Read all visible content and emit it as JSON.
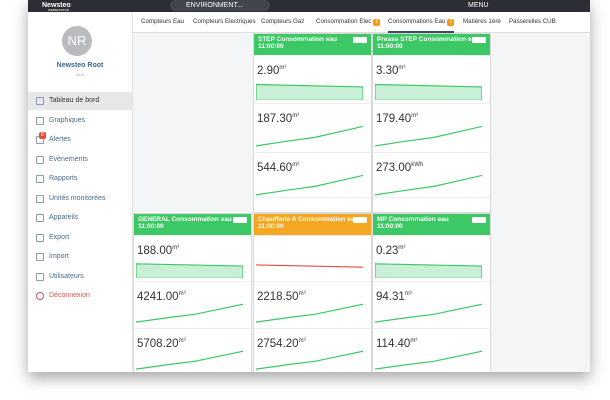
{
  "topbar": {
    "brand": "Newsteo",
    "brand_sub": "WEBMONITOR",
    "search": "ENVIRONMENT...",
    "menu": "MENU"
  },
  "user": {
    "initials": "NR",
    "name": "Newsteo Root",
    "version": "v1.8"
  },
  "sidebar": [
    {
      "label": "Tableau de bord",
      "active": true
    },
    {
      "label": "Graphiques"
    },
    {
      "label": "Alertes",
      "badge": "8"
    },
    {
      "label": "Evènements"
    },
    {
      "label": "Rapports"
    },
    {
      "label": "Unités monitorées"
    },
    {
      "label": "Appareils"
    },
    {
      "label": "Export"
    },
    {
      "label": "Import"
    },
    {
      "label": "Utilisateurs"
    },
    {
      "label": "Déconnexion",
      "danger": true
    }
  ],
  "tabs": [
    {
      "label": "Compteurs Eau"
    },
    {
      "label": "Compteurs Electriques"
    },
    {
      "label": "Compteurs Gaz"
    },
    {
      "label": "Consommation Elec",
      "badge": "1"
    },
    {
      "label": "Consommations Eau",
      "badge": "1",
      "active": true
    },
    {
      "label": "Matières 1ère"
    },
    {
      "label": "Passerelles CUB"
    }
  ],
  "cards": [
    {
      "title": "STEP Consommation eau",
      "time": "11:00:00",
      "status": "ok",
      "rows": [
        {
          "value": "2.90",
          "unit": "m³"
        },
        {
          "value": "187.30",
          "unit": "m³"
        },
        {
          "value": "544.60",
          "unit": "m³"
        }
      ]
    },
    {
      "title": "Presse STEP Consommation eau",
      "time": "11:00:00",
      "status": "ok",
      "rows": [
        {
          "value": "3.30",
          "unit": "m³"
        },
        {
          "value": "179.40",
          "unit": "m³"
        },
        {
          "value": "273.00",
          "unit": "kWh"
        }
      ]
    },
    {
      "title": "GENERAL Consommation eau",
      "time": "11:00:00",
      "status": "ok",
      "rows": [
        {
          "value": "188.00",
          "unit": "m³"
        },
        {
          "value": "4241.00",
          "unit": "m³"
        },
        {
          "value": "5708.20",
          "unit": "m³"
        }
      ]
    },
    {
      "title": "Chaufferie A Consommation eau",
      "time": "11:00:00",
      "status": "warn",
      "rows": [
        {
          "value": "2218.50",
          "unit": "m³"
        },
        {
          "value": "2754.20",
          "unit": "m³"
        }
      ]
    },
    {
      "title": "MP Consommation eau",
      "time": "11:00:00",
      "status": "ok",
      "rows": [
        {
          "value": "0.23",
          "unit": "m³"
        },
        {
          "value": "94.31",
          "unit": "m³"
        },
        {
          "value": "114.40",
          "unit": "m³"
        }
      ]
    }
  ]
}
